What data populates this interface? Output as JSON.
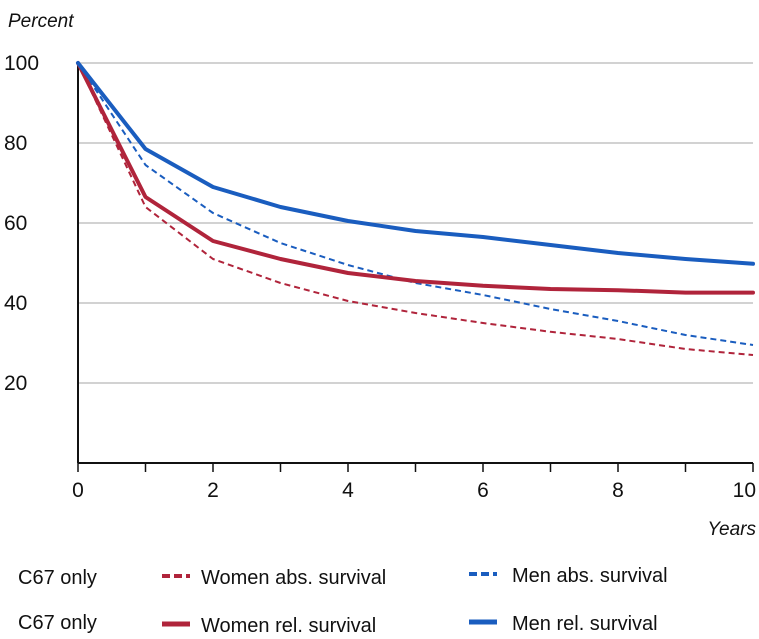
{
  "chart_data": {
    "type": "line",
    "title": "",
    "ylabel": "Percent",
    "xlabel": "Years",
    "xlim": [
      0,
      10
    ],
    "ylim": [
      0,
      100
    ],
    "grid": true,
    "xticks": [
      0,
      2,
      4,
      6,
      8,
      10
    ],
    "xticks_minor": [
      1,
      3,
      5,
      7,
      9
    ],
    "yticks": [
      20,
      40,
      60,
      80,
      100
    ],
    "legend_position": "bottom",
    "series": [
      {
        "name": "Women abs. survival",
        "group_label": "C67 only",
        "color": "#b0243b",
        "style": "dashed",
        "x": [
          0,
          1,
          2,
          3,
          4,
          5,
          6,
          7,
          8,
          9,
          10
        ],
        "y": [
          100,
          64,
          51,
          45,
          40.5,
          37.5,
          35,
          32.8,
          31,
          28.5,
          27
        ]
      },
      {
        "name": "Men abs. survival",
        "color": "#1a5dbf",
        "style": "dashed",
        "x": [
          0,
          1,
          2,
          3,
          4,
          5,
          6,
          7,
          8,
          9,
          10
        ],
        "y": [
          100,
          74.5,
          62.5,
          55,
          49.5,
          45,
          42,
          38.5,
          35.5,
          32,
          29.5
        ]
      },
      {
        "name": "Women rel. survival",
        "group_label": "C67 only",
        "color": "#b0243b",
        "style": "solid",
        "x": [
          0,
          1,
          2,
          3,
          4,
          5,
          6,
          7,
          8,
          9,
          10
        ],
        "y": [
          100,
          66.5,
          55.5,
          51,
          47.5,
          45.5,
          44.3,
          43.5,
          43.2,
          42.6,
          42.6
        ]
      },
      {
        "name": "Men rel. survival",
        "color": "#1a5dbf",
        "style": "solid",
        "x": [
          0,
          1,
          2,
          3,
          4,
          5,
          6,
          7,
          8,
          9,
          10
        ],
        "y": [
          100,
          78.5,
          69,
          64,
          60.5,
          58,
          56.5,
          54.5,
          52.5,
          51,
          49.8
        ]
      }
    ]
  }
}
